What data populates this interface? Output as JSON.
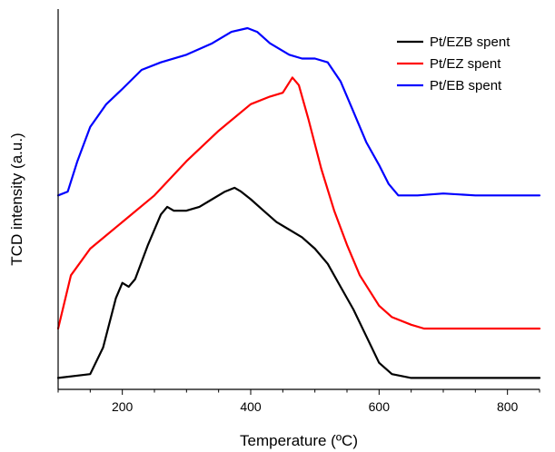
{
  "chart_data": {
    "type": "line",
    "title": "",
    "xlabel": "Temperature (ºC)",
    "ylabel": "TCD intensity (a.u.)",
    "xlim": [
      100,
      850
    ],
    "ylim": [
      0,
      1
    ],
    "x_ticks": [
      200,
      400,
      600,
      800
    ],
    "y_ticks_shown": false,
    "grid": false,
    "legend_position": "top-right",
    "series": [
      {
        "name": "Pt/EZB spent",
        "color": "#000000",
        "points": [
          [
            100,
            0.03
          ],
          [
            150,
            0.04
          ],
          [
            170,
            0.11
          ],
          [
            190,
            0.24
          ],
          [
            200,
            0.28
          ],
          [
            210,
            0.27
          ],
          [
            220,
            0.29
          ],
          [
            240,
            0.38
          ],
          [
            260,
            0.46
          ],
          [
            270,
            0.48
          ],
          [
            280,
            0.47
          ],
          [
            300,
            0.47
          ],
          [
            320,
            0.48
          ],
          [
            340,
            0.5
          ],
          [
            360,
            0.52
          ],
          [
            375,
            0.53
          ],
          [
            385,
            0.52
          ],
          [
            400,
            0.5
          ],
          [
            420,
            0.47
          ],
          [
            440,
            0.44
          ],
          [
            460,
            0.42
          ],
          [
            480,
            0.4
          ],
          [
            500,
            0.37
          ],
          [
            520,
            0.33
          ],
          [
            540,
            0.27
          ],
          [
            560,
            0.21
          ],
          [
            580,
            0.14
          ],
          [
            600,
            0.07
          ],
          [
            620,
            0.04
          ],
          [
            650,
            0.03
          ],
          [
            700,
            0.03
          ],
          [
            750,
            0.03
          ],
          [
            800,
            0.03
          ],
          [
            850,
            0.03
          ]
        ]
      },
      {
        "name": "Pt/EZ spent",
        "color": "#ff0000",
        "points": [
          [
            100,
            0.16
          ],
          [
            120,
            0.3
          ],
          [
            150,
            0.37
          ],
          [
            200,
            0.44
          ],
          [
            250,
            0.51
          ],
          [
            300,
            0.6
          ],
          [
            350,
            0.68
          ],
          [
            400,
            0.75
          ],
          [
            430,
            0.77
          ],
          [
            450,
            0.78
          ],
          [
            465,
            0.82
          ],
          [
            475,
            0.8
          ],
          [
            490,
            0.71
          ],
          [
            510,
            0.58
          ],
          [
            530,
            0.47
          ],
          [
            550,
            0.38
          ],
          [
            570,
            0.3
          ],
          [
            600,
            0.22
          ],
          [
            620,
            0.19
          ],
          [
            650,
            0.17
          ],
          [
            670,
            0.16
          ],
          [
            700,
            0.16
          ],
          [
            750,
            0.16
          ],
          [
            800,
            0.16
          ],
          [
            850,
            0.16
          ]
        ]
      },
      {
        "name": "Pt/EB spent",
        "color": "#0000ff",
        "points": [
          [
            100,
            0.51
          ],
          [
            115,
            0.52
          ],
          [
            130,
            0.6
          ],
          [
            150,
            0.69
          ],
          [
            175,
            0.75
          ],
          [
            200,
            0.79
          ],
          [
            230,
            0.84
          ],
          [
            260,
            0.86
          ],
          [
            300,
            0.88
          ],
          [
            340,
            0.91
          ],
          [
            370,
            0.94
          ],
          [
            395,
            0.95
          ],
          [
            410,
            0.94
          ],
          [
            430,
            0.91
          ],
          [
            460,
            0.88
          ],
          [
            480,
            0.87
          ],
          [
            500,
            0.87
          ],
          [
            520,
            0.86
          ],
          [
            540,
            0.81
          ],
          [
            560,
            0.73
          ],
          [
            580,
            0.65
          ],
          [
            600,
            0.59
          ],
          [
            615,
            0.54
          ],
          [
            630,
            0.51
          ],
          [
            660,
            0.51
          ],
          [
            700,
            0.515
          ],
          [
            750,
            0.51
          ],
          [
            800,
            0.51
          ],
          [
            850,
            0.51
          ]
        ]
      }
    ]
  }
}
